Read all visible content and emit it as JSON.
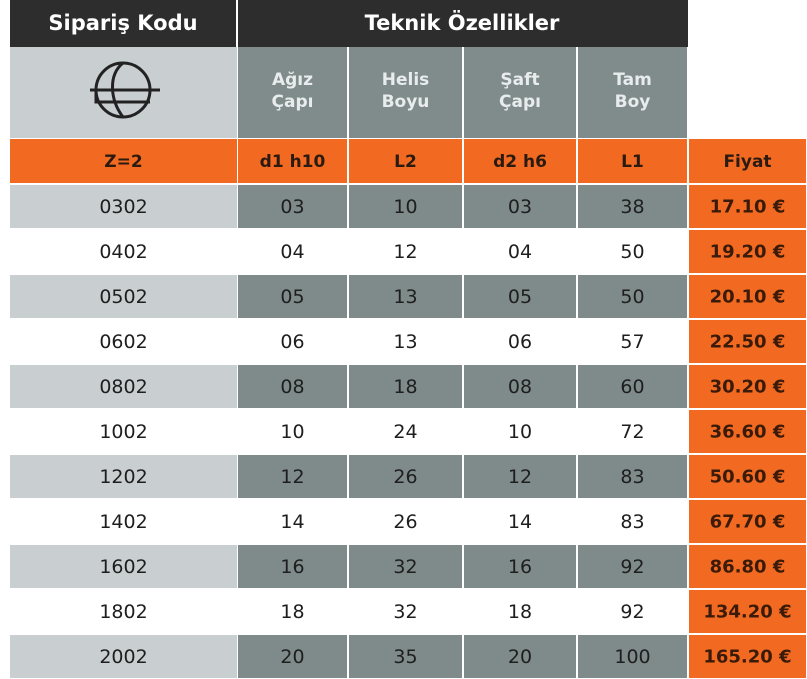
{
  "header": {
    "code": "Sipariş Kodu",
    "specs": "Teknik Özellikler"
  },
  "subheaders": [
    [
      "Ağız",
      "Çapı"
    ],
    [
      "Helis",
      "Boyu"
    ],
    [
      "Şaft",
      "Çapı"
    ],
    [
      "Tam",
      "Boy"
    ]
  ],
  "columns": [
    "Z=2",
    "d1 h10",
    "L2",
    "d2 h6",
    "L1",
    "Fiyat"
  ],
  "rows": [
    [
      "0302",
      "03",
      "10",
      "03",
      "38",
      "17.10 €"
    ],
    [
      "0402",
      "04",
      "12",
      "04",
      "50",
      "19.20 €"
    ],
    [
      "0502",
      "05",
      "13",
      "05",
      "50",
      "20.10 €"
    ],
    [
      "0602",
      "06",
      "13",
      "06",
      "57",
      "22.50 €"
    ],
    [
      "0802",
      "08",
      "18",
      "08",
      "60",
      "30.20 €"
    ],
    [
      "1002",
      "10",
      "24",
      "10",
      "72",
      "36.60 €"
    ],
    [
      "1202",
      "12",
      "26",
      "12",
      "83",
      "50.60 €"
    ],
    [
      "1402",
      "14",
      "26",
      "14",
      "83",
      "67.70 €"
    ],
    [
      "1602",
      "16",
      "32",
      "16",
      "92",
      "86.80 €"
    ],
    [
      "1802",
      "18",
      "32",
      "18",
      "92",
      "134.20 €"
    ],
    [
      "2002",
      "20",
      "35",
      "20",
      "100",
      "165.20 €"
    ]
  ]
}
